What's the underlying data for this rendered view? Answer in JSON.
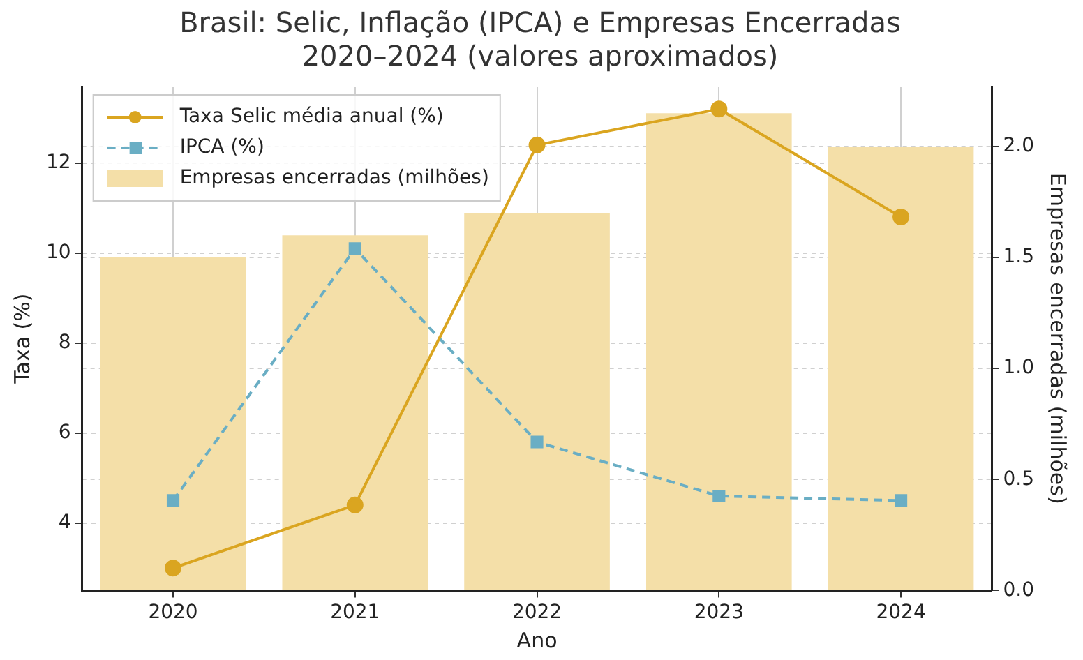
{
  "chart_data": {
    "type": "line",
    "title": "Brasil: Selic, Inflação (IPCA) e Empresas Encerradas\n2020–2024 (valores aproximados)",
    "xlabel": "Ano",
    "ylabel": "Taxa (%)",
    "y2label": "Empresas encerradas (milhões)",
    "categories": [
      "2020",
      "2021",
      "2022",
      "2023",
      "2024"
    ],
    "series": [
      {
        "name": "Taxa Selic média anual (%)",
        "color": "#daa520",
        "marker": "circle",
        "line_style": "solid",
        "values": [
          3.0,
          4.4,
          12.4,
          13.2,
          10.8
        ]
      },
      {
        "name": "IPCA (%)",
        "color": "#6aaec4",
        "marker": "square",
        "line_style": "dashed",
        "values": [
          4.5,
          10.1,
          5.8,
          4.6,
          4.5
        ]
      },
      {
        "name": "Empresas encerradas (milhões)",
        "type": "bar",
        "axis": "y2",
        "color": "#f4dfa8",
        "values": [
          1.5,
          1.6,
          1.7,
          2.15,
          2.0
        ]
      }
    ],
    "ylim": [
      2.5,
      13.7
    ],
    "yticks": [
      4,
      6,
      8,
      10,
      12
    ],
    "y2lim": [
      0,
      2.27
    ],
    "y2ticks": [
      {
        "value": 0,
        "label": "0.0"
      },
      0.5,
      {
        "value": 1,
        "label": "1.0"
      },
      1.5,
      {
        "value": 2,
        "label": "2.0"
      }
    ],
    "grid": true,
    "legend": "top left"
  }
}
